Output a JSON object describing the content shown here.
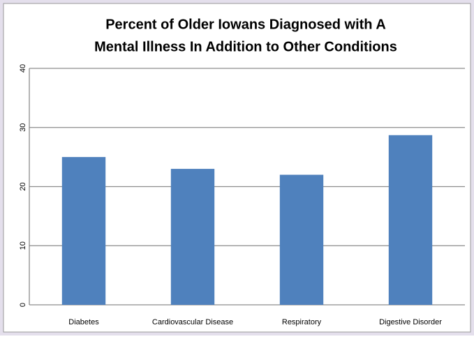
{
  "chart_data": {
    "type": "bar",
    "title": [
      "Percent of Older Iowans Diagnosed with A",
      "Mental Illness In Addition to Other Conditions"
    ],
    "categories": [
      "Diabetes",
      "Cardiovascular Disease",
      "Respiratory",
      "Digestive Disorder"
    ],
    "values": [
      25.0,
      23.0,
      22.0,
      28.7
    ],
    "color": "#4f81bd",
    "ylim": [
      0,
      40
    ],
    "yticks": [
      0,
      10,
      20,
      30,
      40
    ],
    "grid": true
  }
}
